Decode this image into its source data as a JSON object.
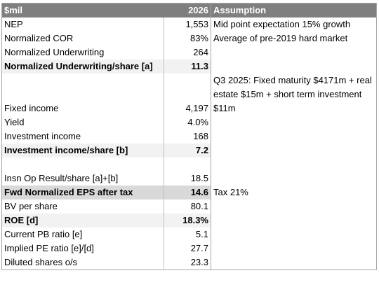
{
  "header": {
    "label": "$mil",
    "year": "2026",
    "assumption": "Assumption"
  },
  "rows": [
    {
      "label": "NEP",
      "value": "1,553",
      "note": "Mid point expectation 15% growth"
    },
    {
      "label": "Normalized COR",
      "value": "83%",
      "note": "Average of pre-2019 hard market"
    },
    {
      "label": "Normalized Underwriting",
      "value": "264",
      "note": ""
    },
    {
      "label": "Normalized Underwriting/share [a]",
      "value": "11.3",
      "note": ""
    },
    {
      "label": "Fixed income",
      "value": "4,197",
      "note": "Q3 2025: Fixed maturity $4171m + real estate $15m + short term investment $11m"
    },
    {
      "label": "Yield",
      "value": "4.0%",
      "note": ""
    },
    {
      "label": "Investment income",
      "value": "168",
      "note": ""
    },
    {
      "label": "Investment income/share [b]",
      "value": "7.2",
      "note": ""
    },
    {
      "label": "Insn Op Result/share [a]+[b]",
      "value": "18.5",
      "note": ""
    },
    {
      "label": "Fwd Normalized EPS after tax",
      "value": "14.6",
      "note": "Tax 21%"
    },
    {
      "label": "BV per share",
      "value": "80.1",
      "note": ""
    },
    {
      "label": "ROE [d]",
      "value": "18.3%",
      "note": ""
    },
    {
      "label": "Current PB ratio [e]",
      "value": "5.1",
      "note": ""
    },
    {
      "label": "Implied PE ratio [e]/[d]",
      "value": "27.7",
      "note": ""
    },
    {
      "label": "Diluted shares o/s",
      "value": "23.3",
      "note": ""
    }
  ]
}
